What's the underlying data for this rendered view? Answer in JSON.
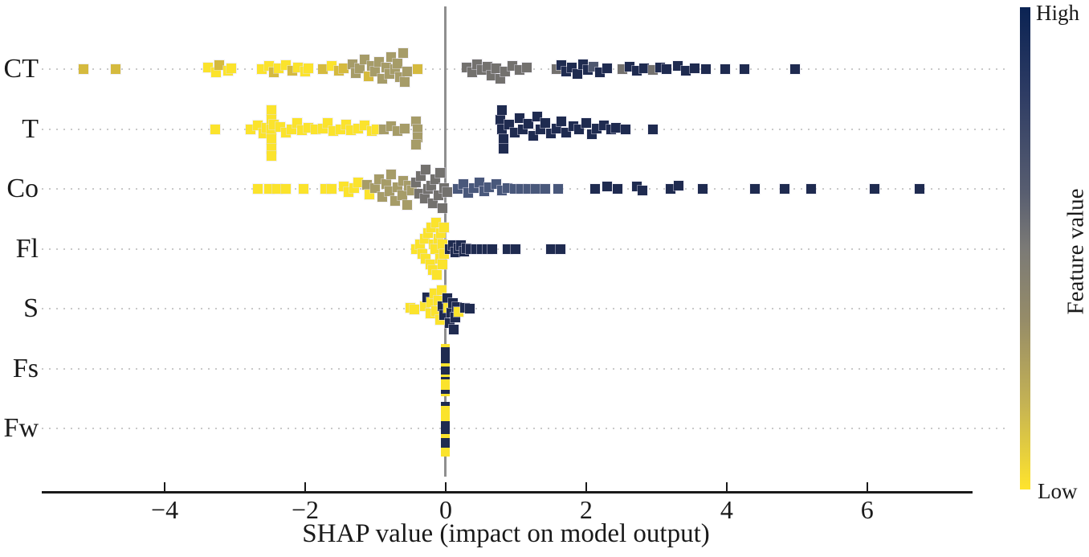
{
  "figure_title": "SHAP beeswarm summary plot",
  "x_axis": {
    "title": "SHAP value (impact on model output)"
  },
  "colorbar": {
    "high_label": "High",
    "low_label": "Low",
    "title": "Feature value"
  },
  "chart_data": {
    "type": "scatter",
    "subtype": "shap-beeswarm",
    "xlabel": "SHAP value (impact on model output)",
    "ylabel": "",
    "xlim": [
      -5.75,
      7.5
    ],
    "grid": "dotted horizontal row guides",
    "legend_position": "colorbar right (High=dark navy, Low=yellow)",
    "features": [
      "CT",
      "T",
      "Co",
      "Fl",
      "S",
      "Fs",
      "Fw"
    ],
    "x_ticks": [
      {
        "v": -4,
        "label": "−4"
      },
      {
        "v": -2,
        "label": "−2"
      },
      {
        "v": 0,
        "label": "0"
      },
      {
        "v": 2,
        "label": "2"
      },
      {
        "v": 4,
        "label": "4"
      },
      {
        "v": 6,
        "label": "6"
      }
    ],
    "colors": {
      "y": "#FBE32C",
      "o": "#D5BA3E",
      "k": "#A69C68",
      "g": "#73716E",
      "h": "#4F5870",
      "s": "#49587B",
      "n": "#1F2B50"
    },
    "color_meaning": {
      "y": "low feature value",
      "k": "low-mid",
      "g": "mid",
      "s": "mid-high",
      "n": "high feature value"
    },
    "points": {
      "CT": [
        [
          -5.15,
          0,
          "o"
        ],
        [
          -4.7,
          0,
          "o"
        ],
        [
          -3.38,
          -2,
          "y"
        ],
        [
          -3.27,
          4,
          "y"
        ],
        [
          -3.22,
          -5,
          "o"
        ],
        [
          -3.1,
          2,
          "y"
        ],
        [
          -3.05,
          -1,
          "y"
        ],
        [
          -2.62,
          0,
          "y"
        ],
        [
          -2.52,
          -4,
          "y"
        ],
        [
          -2.45,
          4,
          "o"
        ],
        [
          -2.38,
          -1,
          "y"
        ],
        [
          -2.28,
          -5,
          "y"
        ],
        [
          -2.18,
          2,
          "o"
        ],
        [
          -2.1,
          -2,
          "y"
        ],
        [
          -2.0,
          3,
          "y"
        ],
        [
          -1.95,
          -1,
          "y"
        ],
        [
          -1.75,
          0,
          "o"
        ],
        [
          -1.62,
          -4,
          "y"
        ],
        [
          -1.52,
          2,
          "o"
        ],
        [
          -1.45,
          -1,
          "o"
        ],
        [
          -1.32,
          -6,
          "k"
        ],
        [
          -1.28,
          5,
          "k"
        ],
        [
          -1.22,
          -1,
          "k"
        ],
        [
          -1.15,
          -12,
          "k"
        ],
        [
          -1.1,
          9,
          "o"
        ],
        [
          -1.05,
          -4,
          "k"
        ],
        [
          -1.0,
          3,
          "k"
        ],
        [
          -0.95,
          -9,
          "k"
        ],
        [
          -0.9,
          12,
          "k"
        ],
        [
          -0.85,
          -2,
          "k"
        ],
        [
          -0.8,
          6,
          "k"
        ],
        [
          -0.78,
          -15,
          "k"
        ],
        [
          -0.72,
          0,
          "k"
        ],
        [
          -0.68,
          -7,
          "k"
        ],
        [
          -0.65,
          10,
          "k"
        ],
        [
          -0.6,
          -20,
          "k"
        ],
        [
          -0.58,
          16,
          "k"
        ],
        [
          -0.55,
          3,
          "k"
        ],
        [
          -0.4,
          0,
          "o"
        ],
        [
          0.3,
          -2,
          "g"
        ],
        [
          0.38,
          4,
          "g"
        ],
        [
          0.45,
          -6,
          "g"
        ],
        [
          0.52,
          1,
          "g"
        ],
        [
          0.6,
          -3,
          "g"
        ],
        [
          0.65,
          8,
          "g"
        ],
        [
          0.72,
          -1,
          "g"
        ],
        [
          0.78,
          12,
          "g"
        ],
        [
          0.85,
          3,
          "g"
        ],
        [
          0.95,
          -4,
          "g"
        ],
        [
          1.05,
          1,
          "g"
        ],
        [
          1.15,
          -2,
          "g"
        ],
        [
          1.58,
          0,
          "g"
        ],
        [
          1.65,
          -5,
          "n"
        ],
        [
          1.72,
          3,
          "n"
        ],
        [
          1.8,
          -2,
          "n"
        ],
        [
          1.88,
          6,
          "n"
        ],
        [
          1.95,
          -6,
          "n"
        ],
        [
          2.02,
          1,
          "n"
        ],
        [
          2.1,
          -3,
          "h"
        ],
        [
          2.2,
          4,
          "n"
        ],
        [
          2.3,
          -1,
          "n"
        ],
        [
          2.52,
          0,
          "g"
        ],
        [
          2.62,
          -3,
          "n"
        ],
        [
          2.72,
          2,
          "n"
        ],
        [
          2.82,
          -1,
          "n"
        ],
        [
          2.95,
          1,
          "g"
        ],
        [
          3.05,
          -2,
          "n"
        ],
        [
          3.15,
          0,
          "n"
        ],
        [
          3.3,
          -4,
          "n"
        ],
        [
          3.42,
          2,
          "n"
        ],
        [
          3.55,
          -1,
          "n"
        ],
        [
          3.7,
          0,
          "n"
        ],
        [
          3.98,
          0,
          "n"
        ],
        [
          4.25,
          0,
          "n"
        ],
        [
          4.97,
          0,
          "n"
        ]
      ],
      "T": [
        [
          -3.28,
          0,
          "y"
        ],
        [
          -2.78,
          0,
          "y"
        ],
        [
          -2.68,
          -5,
          "y"
        ],
        [
          -2.6,
          5,
          "y"
        ],
        [
          -2.55,
          -2,
          "y"
        ],
        [
          -2.48,
          -24,
          "y"
        ],
        [
          -2.48,
          -12,
          "y"
        ],
        [
          -2.48,
          0,
          "y"
        ],
        [
          -2.48,
          12,
          "y"
        ],
        [
          -2.48,
          24,
          "y"
        ],
        [
          -2.48,
          33,
          "y"
        ],
        [
          -2.45,
          -6,
          "y"
        ],
        [
          -2.35,
          -3,
          "y"
        ],
        [
          -2.28,
          4,
          "y"
        ],
        [
          -2.2,
          0,
          "y"
        ],
        [
          -2.12,
          -8,
          "y"
        ],
        [
          -2.05,
          1,
          "y"
        ],
        [
          -1.95,
          -2,
          "y"
        ],
        [
          -1.85,
          0,
          "y"
        ],
        [
          -1.75,
          -1,
          "y"
        ],
        [
          -1.68,
          -8,
          "y"
        ],
        [
          -1.6,
          2,
          "y"
        ],
        [
          -1.5,
          0,
          "y"
        ],
        [
          -1.42,
          -6,
          "y"
        ],
        [
          -1.35,
          1,
          "y"
        ],
        [
          -1.25,
          -1,
          "y"
        ],
        [
          -1.15,
          -5,
          "y"
        ],
        [
          -1.05,
          2,
          "y"
        ],
        [
          -0.98,
          0,
          "y"
        ],
        [
          -0.88,
          0,
          "k"
        ],
        [
          -0.78,
          -4,
          "k"
        ],
        [
          -0.68,
          2,
          "k"
        ],
        [
          -0.58,
          -1,
          "k"
        ],
        [
          -0.42,
          -10,
          "k"
        ],
        [
          -0.4,
          0,
          "k"
        ],
        [
          -0.4,
          10,
          "k"
        ],
        [
          -0.42,
          19,
          "k"
        ],
        [
          0.78,
          -12,
          "n"
        ],
        [
          0.8,
          -24,
          "n"
        ],
        [
          0.8,
          0,
          "n"
        ],
        [
          0.82,
          12,
          "n"
        ],
        [
          0.82,
          24,
          "n"
        ],
        [
          0.9,
          -6,
          "n"
        ],
        [
          0.98,
          4,
          "n"
        ],
        [
          1.05,
          -14,
          "n"
        ],
        [
          1.1,
          0,
          "n"
        ],
        [
          1.18,
          -7,
          "n"
        ],
        [
          1.25,
          8,
          "n"
        ],
        [
          1.3,
          -16,
          "n"
        ],
        [
          1.35,
          0,
          "n"
        ],
        [
          1.42,
          -8,
          "n"
        ],
        [
          1.5,
          5,
          "n"
        ],
        [
          1.58,
          -1,
          "n"
        ],
        [
          1.65,
          -10,
          "n"
        ],
        [
          1.72,
          4,
          "n"
        ],
        [
          1.82,
          -4,
          "n"
        ],
        [
          1.9,
          0,
          "n"
        ],
        [
          2.0,
          -8,
          "n"
        ],
        [
          2.08,
          6,
          "n"
        ],
        [
          2.15,
          -1,
          "n"
        ],
        [
          2.25,
          -5,
          "n"
        ],
        [
          2.35,
          0,
          "n"
        ],
        [
          2.42,
          -2,
          "n"
        ],
        [
          2.56,
          0,
          "n"
        ],
        [
          2.95,
          0,
          "n"
        ]
      ],
      "Co": [
        [
          -2.67,
          0,
          "y"
        ],
        [
          -2.52,
          0,
          "y"
        ],
        [
          -2.4,
          0,
          "y"
        ],
        [
          -2.28,
          0,
          "y"
        ],
        [
          -2.02,
          0,
          "y"
        ],
        [
          -1.72,
          0,
          "y"
        ],
        [
          -1.62,
          0,
          "y"
        ],
        [
          -1.45,
          -3,
          "y"
        ],
        [
          -1.38,
          4,
          "y"
        ],
        [
          -1.3,
          -1,
          "y"
        ],
        [
          -1.25,
          -8,
          "y"
        ],
        [
          -1.12,
          -5,
          "k"
        ],
        [
          -1.08,
          7,
          "y"
        ],
        [
          -1.0,
          -1,
          "k"
        ],
        [
          -0.95,
          -12,
          "k"
        ],
        [
          -0.9,
          10,
          "k"
        ],
        [
          -0.85,
          -6,
          "k"
        ],
        [
          -0.8,
          3,
          "k"
        ],
        [
          -0.78,
          -18,
          "k"
        ],
        [
          -0.72,
          15,
          "k"
        ],
        [
          -0.68,
          -2,
          "k"
        ],
        [
          -0.62,
          8,
          "k"
        ],
        [
          -0.6,
          -10,
          "k"
        ],
        [
          -0.55,
          20,
          "k"
        ],
        [
          -0.52,
          -4,
          "k"
        ],
        [
          -0.48,
          2,
          "k"
        ],
        [
          -0.42,
          -8,
          "g"
        ],
        [
          -0.38,
          6,
          "g"
        ],
        [
          -0.35,
          -16,
          "g"
        ],
        [
          -0.3,
          12,
          "g"
        ],
        [
          -0.28,
          -24,
          "g"
        ],
        [
          -0.25,
          0,
          "g"
        ],
        [
          -0.2,
          -4,
          "g"
        ],
        [
          -0.18,
          18,
          "g"
        ],
        [
          -0.15,
          -12,
          "g"
        ],
        [
          -0.1,
          8,
          "g"
        ],
        [
          -0.08,
          -20,
          "g"
        ],
        [
          -0.05,
          24,
          "g"
        ],
        [
          -0.02,
          -1,
          "g"
        ],
        [
          0.02,
          4,
          "g"
        ],
        [
          0.17,
          0,
          "s"
        ],
        [
          0.25,
          -6,
          "s"
        ],
        [
          0.32,
          5,
          "s"
        ],
        [
          0.4,
          -1,
          "s"
        ],
        [
          0.48,
          -8,
          "s"
        ],
        [
          0.55,
          3,
          "s"
        ],
        [
          0.62,
          -2,
          "s"
        ],
        [
          0.72,
          -6,
          "s"
        ],
        [
          0.8,
          2,
          "s"
        ],
        [
          0.88,
          -1,
          "s"
        ],
        [
          0.98,
          0,
          "s"
        ],
        [
          1.08,
          0,
          "s"
        ],
        [
          1.18,
          0,
          "s"
        ],
        [
          1.28,
          0,
          "s"
        ],
        [
          1.42,
          0,
          "s"
        ],
        [
          1.6,
          0,
          "s"
        ],
        [
          2.13,
          0,
          "n"
        ],
        [
          2.3,
          -3,
          "n"
        ],
        [
          2.45,
          0,
          "n"
        ],
        [
          2.72,
          -3,
          "n"
        ],
        [
          2.8,
          2,
          "n"
        ],
        [
          3.2,
          0,
          "n"
        ],
        [
          3.32,
          -4,
          "n"
        ],
        [
          3.66,
          0,
          "n"
        ],
        [
          4.4,
          0,
          "n"
        ],
        [
          4.83,
          0,
          "n"
        ],
        [
          5.2,
          0,
          "n"
        ],
        [
          6.1,
          0,
          "n"
        ],
        [
          6.74,
          0,
          "n"
        ]
      ],
      "Fl": [
        [
          -0.42,
          0,
          "y"
        ],
        [
          -0.36,
          -6,
          "y"
        ],
        [
          -0.33,
          6,
          "y"
        ],
        [
          -0.3,
          -13,
          "y"
        ],
        [
          -0.28,
          12,
          "y"
        ],
        [
          -0.25,
          -20,
          "y"
        ],
        [
          -0.22,
          19,
          "y"
        ],
        [
          -0.2,
          -27,
          "y"
        ],
        [
          -0.18,
          26,
          "y"
        ],
        [
          -0.17,
          -6,
          "y"
        ],
        [
          -0.15,
          0,
          "y"
        ],
        [
          -0.14,
          -33,
          "y"
        ],
        [
          -0.12,
          32,
          "y"
        ],
        [
          -0.1,
          -13,
          "y"
        ],
        [
          -0.08,
          12,
          "y"
        ],
        [
          -0.07,
          -20,
          "y"
        ],
        [
          -0.05,
          19,
          "y"
        ],
        [
          -0.04,
          -6,
          "y"
        ],
        [
          -0.02,
          6,
          "y"
        ],
        [
          -0.02,
          -27,
          "y"
        ],
        [
          0.06,
          0,
          "n"
        ],
        [
          0.1,
          -5,
          "n"
        ],
        [
          0.14,
          4,
          "n"
        ],
        [
          0.18,
          -1,
          "n"
        ],
        [
          0.22,
          -5,
          "n"
        ],
        [
          0.26,
          3,
          "n"
        ],
        [
          0.3,
          -1,
          "n"
        ],
        [
          0.36,
          0,
          "n"
        ],
        [
          0.44,
          0,
          "n"
        ],
        [
          0.52,
          0,
          "n"
        ],
        [
          0.6,
          0,
          "n"
        ],
        [
          0.66,
          0,
          "n"
        ],
        [
          0.88,
          0,
          "n"
        ],
        [
          1.0,
          0,
          "n"
        ],
        [
          1.5,
          0,
          "n"
        ],
        [
          1.63,
          0,
          "n"
        ]
      ],
      "S": [
        [
          -0.5,
          -1,
          "y"
        ],
        [
          -0.44,
          1,
          "y"
        ],
        [
          -0.3,
          -3,
          "y"
        ],
        [
          -0.26,
          -14,
          "n"
        ],
        [
          -0.22,
          6,
          "y"
        ],
        [
          -0.2,
          -8,
          "y"
        ],
        [
          -0.16,
          -19,
          "y"
        ],
        [
          -0.14,
          3,
          "y"
        ],
        [
          -0.1,
          -10,
          "y"
        ],
        [
          -0.08,
          14,
          "y"
        ],
        [
          -0.06,
          -23,
          "y"
        ],
        [
          -0.05,
          -3,
          "n"
        ],
        [
          -0.02,
          8,
          "n"
        ],
        [
          0.02,
          -13,
          "n"
        ],
        [
          0.04,
          -1,
          "y"
        ],
        [
          0.06,
          18,
          "n"
        ],
        [
          0.08,
          5,
          "n"
        ],
        [
          0.1,
          -7,
          "n"
        ],
        [
          0.12,
          26,
          "n"
        ],
        [
          0.14,
          11,
          "n"
        ],
        [
          0.16,
          -2,
          "n"
        ],
        [
          0.18,
          4,
          "y"
        ],
        [
          0.28,
          -1,
          "n"
        ],
        [
          0.34,
          0,
          "n"
        ]
      ],
      "Fs": [],
      "Fw": []
    },
    "stacks": {
      "Fs": [
        [
          -31,
          4,
          "y"
        ],
        [
          -27,
          20,
          "n"
        ],
        [
          -7,
          4,
          "y"
        ],
        [
          -3,
          10,
          "n"
        ],
        [
          7,
          3,
          "y"
        ],
        [
          10,
          3,
          "n"
        ],
        [
          13,
          13,
          "y"
        ],
        [
          26,
          5,
          "n"
        ],
        [
          31,
          3,
          "y"
        ]
      ],
      "Fw": [
        [
          -33,
          5,
          "n"
        ],
        [
          -28,
          19,
          "y"
        ],
        [
          -9,
          16,
          "n"
        ],
        [
          7,
          5,
          "y"
        ],
        [
          12,
          12,
          "n"
        ],
        [
          24,
          11,
          "y"
        ]
      ]
    }
  }
}
